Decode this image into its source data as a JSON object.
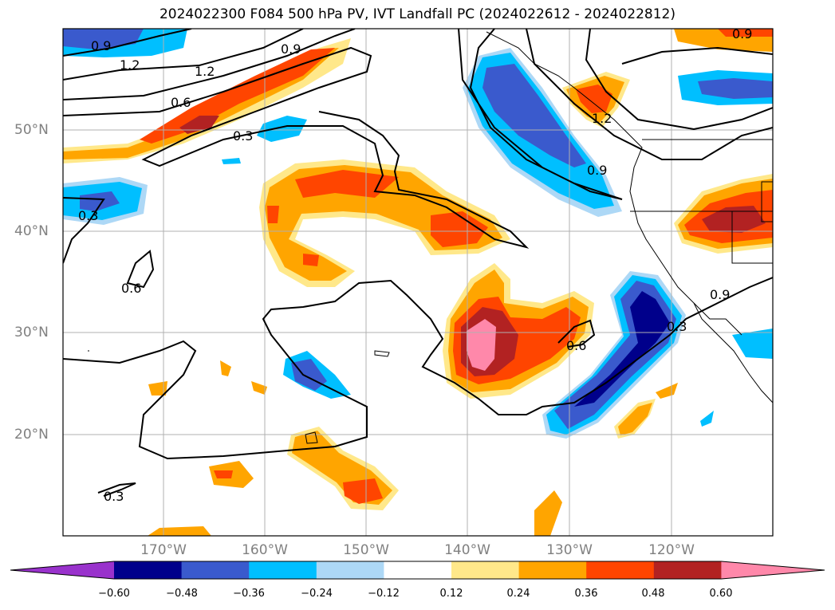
{
  "title": "2024022300 F084 500 hPa PV, IVT Landfall PC (2024022612 - 2024022812)",
  "lon_labels": [
    "170°W",
    "160°W",
    "150°W",
    "140°W",
    "130°W",
    "120°W"
  ],
  "lat_labels": [
    "50°N",
    "40°N",
    "30°N",
    "20°N"
  ],
  "contour_labels": [
    "0.9",
    "1.2",
    "1.2",
    "0.6",
    "0.9",
    "0.3",
    "0.3",
    "0.6",
    "0.9",
    "1.2",
    "0.9",
    "0.3",
    "0.6",
    "0.3",
    "0.9"
  ],
  "colorbar": {
    "ticks": [
      "−0.60",
      "−0.48",
      "−0.36",
      "−0.24",
      "−0.12",
      "0.12",
      "0.24",
      "0.36",
      "0.48",
      "0.60"
    ],
    "colors": [
      "#9932cc",
      "#00008b",
      "#3a5acd",
      "#00bfff",
      "#add8f6",
      "#ffffff",
      "#ffe88a",
      "#ffa500",
      "#ff4500",
      "#b22222",
      "#ff88aa"
    ]
  },
  "chart_data": {
    "type": "heatmap",
    "title": "2024022300 F084 500 hPa PV, IVT Landfall PC (2024022612 - 2024022812)",
    "x_axis": {
      "ticks": [
        -170,
        -160,
        -150,
        -140,
        -130,
        -120
      ],
      "range": [
        -180,
        -110
      ]
    },
    "y_axis": {
      "ticks": [
        50,
        40,
        30,
        20
      ],
      "range": [
        10,
        60
      ]
    },
    "fill_levels": [
      -0.6,
      -0.48,
      -0.36,
      -0.24,
      -0.12,
      0.12,
      0.24,
      0.36,
      0.48,
      0.6
    ],
    "contour_levels": [
      0.3,
      0.6,
      0.9,
      1.2
    ],
    "grid": true
  }
}
